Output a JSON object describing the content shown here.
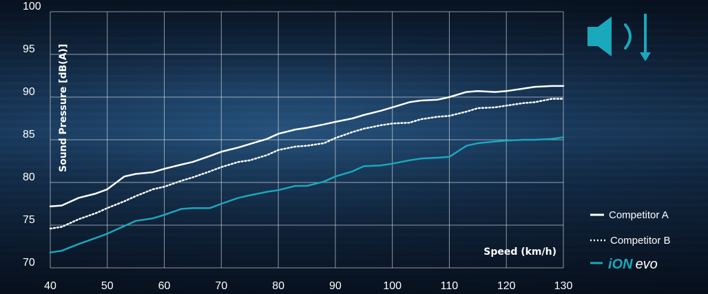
{
  "chart_data": {
    "type": "line",
    "ylabel": "Sound Pressure [dB(A)]",
    "xlabel": "Speed (km/h)",
    "xlim": [
      40,
      130
    ],
    "ylim": [
      70,
      100
    ],
    "x_ticks": [
      40,
      50,
      60,
      70,
      80,
      90,
      100,
      110,
      120,
      130
    ],
    "y_ticks": [
      70,
      75,
      80,
      85,
      90,
      95,
      100
    ],
    "grid": true,
    "legend_position": "bottom-right",
    "series": [
      {
        "name": "Competitor A",
        "style": "solid",
        "color": "#ffffff",
        "x": [
          40,
          42,
          45,
          48,
          50,
          53,
          55,
          58,
          60,
          63,
          65,
          68,
          70,
          73,
          75,
          78,
          80,
          83,
          85,
          88,
          90,
          93,
          95,
          98,
          100,
          103,
          105,
          108,
          110,
          113,
          115,
          118,
          120,
          123,
          125,
          128,
          130
        ],
        "y": [
          77.2,
          77.3,
          78.2,
          78.7,
          79.2,
          80.7,
          81.0,
          81.2,
          81.6,
          82.1,
          82.4,
          83.1,
          83.6,
          84.1,
          84.5,
          85.1,
          85.7,
          86.2,
          86.4,
          86.8,
          87.1,
          87.5,
          87.9,
          88.4,
          88.8,
          89.4,
          89.6,
          89.7,
          90.0,
          90.6,
          90.7,
          90.6,
          90.7,
          91.0,
          91.2,
          91.3,
          91.3
        ]
      },
      {
        "name": "Competitor B",
        "style": "dotted",
        "color": "#ffffff",
        "x": [
          40,
          42,
          45,
          48,
          50,
          53,
          55,
          58,
          60,
          63,
          65,
          68,
          70,
          73,
          75,
          78,
          80,
          83,
          85,
          88,
          90,
          93,
          95,
          98,
          100,
          103,
          105,
          108,
          110,
          113,
          115,
          118,
          120,
          123,
          125,
          128,
          130
        ],
        "y": [
          74.6,
          74.8,
          75.7,
          76.4,
          77.0,
          77.8,
          78.4,
          79.2,
          79.5,
          80.2,
          80.6,
          81.3,
          81.8,
          82.4,
          82.6,
          83.2,
          83.8,
          84.2,
          84.3,
          84.6,
          85.2,
          85.9,
          86.3,
          86.7,
          86.9,
          87.0,
          87.4,
          87.7,
          87.8,
          88.3,
          88.7,
          88.8,
          89.0,
          89.3,
          89.4,
          89.8,
          89.8
        ]
      },
      {
        "name": "iON evo",
        "style": "solid",
        "color": "#1aa8bd",
        "x": [
          40,
          42,
          45,
          48,
          50,
          53,
          55,
          58,
          60,
          63,
          65,
          68,
          70,
          73,
          75,
          78,
          80,
          83,
          85,
          88,
          90,
          93,
          95,
          98,
          100,
          103,
          105,
          108,
          110,
          113,
          115,
          118,
          120,
          123,
          125,
          128,
          130
        ],
        "y": [
          71.8,
          72.0,
          72.8,
          73.5,
          74.0,
          74.9,
          75.5,
          75.8,
          76.2,
          76.9,
          77.0,
          77.0,
          77.5,
          78.2,
          78.5,
          78.9,
          79.1,
          79.6,
          79.6,
          80.1,
          80.7,
          81.3,
          81.9,
          82.0,
          82.2,
          82.6,
          82.8,
          82.9,
          83.0,
          84.3,
          84.6,
          84.8,
          84.9,
          85.0,
          85.0,
          85.1,
          85.3
        ]
      }
    ]
  },
  "legend": {
    "competitor_a": "Competitor A",
    "competitor_b": "Competitor B",
    "ion_part1": "iON",
    "ion_part2": "evo"
  },
  "icons": {
    "top_right": "speaker-volume-down-icon"
  },
  "colors": {
    "accent": "#1aa8bd",
    "line_white": "#ffffff"
  }
}
